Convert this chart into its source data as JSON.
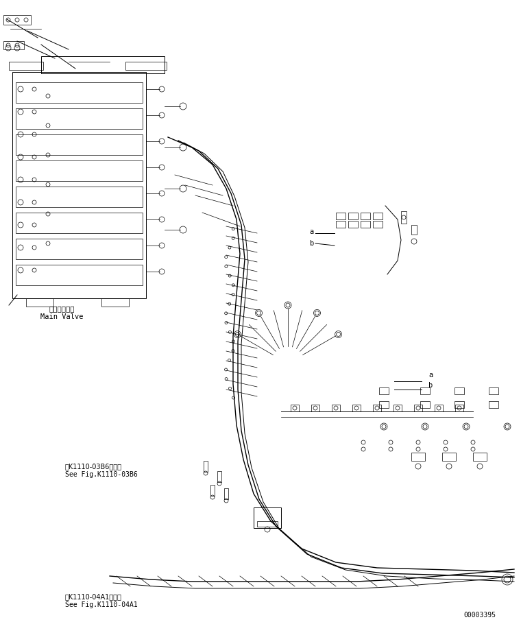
{
  "bg_color": "#ffffff",
  "line_color": "#000000",
  "title": "",
  "doc_number": "00003395",
  "label_main_valve_jp": "メインバルブ",
  "label_main_valve_en": "Main Valve",
  "label_ref1_jp": "第K1110-03B6図参照",
  "label_ref1_en": "See Fig.K1110-03B6",
  "label_ref2_jp": "第K1110-04A1図参照",
  "label_ref2_en": "See Fig.K1110-04A1",
  "label_a": "a",
  "label_b": "b",
  "font_size_label": 7.5,
  "font_size_ref": 7.0,
  "font_size_doc": 7.0
}
